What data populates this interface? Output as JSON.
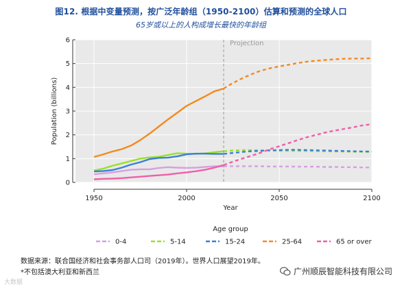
{
  "header": {
    "title": "图12. 根据中变量预测，按广泛年龄组（1950-2100）估算和预测的全球人口",
    "subtitle": "65岁或以上的人构成增长最快的年龄组"
  },
  "footer": {
    "source": "数据来源：联合国经济和社会事务部人口司（2019年）。世界人口展望2019年。",
    "footnote": "*不包括澳大利亚和新西兰",
    "watermark": "大数据",
    "company": "广州顺辰智能科技有限公司"
  },
  "chart_data": {
    "type": "line",
    "xlabel": "Year",
    "ylabel": "Population (billions)",
    "xlim": [
      1940,
      2100
    ],
    "ylim": [
      0,
      6
    ],
    "x_ticks": [
      1950,
      2000,
      2050,
      2100
    ],
    "y_ticks": [
      0,
      1,
      2,
      3,
      4,
      5,
      6
    ],
    "grid": true,
    "projection_start": 2020,
    "projection_label": "Projection",
    "legend_title": "Age group",
    "legend_position": "bottom",
    "x": [
      1950,
      1955,
      1960,
      1965,
      1970,
      1975,
      1980,
      1985,
      1990,
      1995,
      2000,
      2005,
      2010,
      2015,
      2020,
      2025,
      2030,
      2035,
      2040,
      2045,
      2050,
      2055,
      2060,
      2065,
      2070,
      2075,
      2080,
      2085,
      2090,
      2095,
      2100
    ],
    "series": [
      {
        "name": "0-4",
        "color": "#d6a0e0",
        "values": [
          0.34,
          0.38,
          0.42,
          0.48,
          0.53,
          0.55,
          0.55,
          0.61,
          0.64,
          0.62,
          0.61,
          0.62,
          0.65,
          0.68,
          0.68,
          0.68,
          0.68,
          0.68,
          0.68,
          0.67,
          0.67,
          0.67,
          0.66,
          0.66,
          0.66,
          0.65,
          0.65,
          0.64,
          0.64,
          0.63,
          0.63
        ]
      },
      {
        "name": "5-14",
        "color": "#99e02a",
        "values": [
          0.5,
          0.58,
          0.7,
          0.8,
          0.9,
          1.0,
          1.05,
          1.08,
          1.15,
          1.23,
          1.21,
          1.2,
          1.22,
          1.27,
          1.31,
          1.34,
          1.36,
          1.36,
          1.35,
          1.34,
          1.33,
          1.33,
          1.32,
          1.32,
          1.31,
          1.31,
          1.3,
          1.3,
          1.29,
          1.29,
          1.28
        ]
      },
      {
        "name": "15-24",
        "color": "#3a7fd5",
        "values": [
          0.46,
          0.48,
          0.52,
          0.62,
          0.75,
          0.85,
          0.98,
          1.03,
          1.04,
          1.1,
          1.18,
          1.21,
          1.21,
          1.2,
          1.2,
          1.24,
          1.28,
          1.31,
          1.33,
          1.35,
          1.36,
          1.37,
          1.37,
          1.36,
          1.35,
          1.34,
          1.33,
          1.32,
          1.31,
          1.3,
          1.3
        ]
      },
      {
        "name": "25-64",
        "color": "#f28a1e",
        "values": [
          1.07,
          1.18,
          1.3,
          1.4,
          1.55,
          1.78,
          2.05,
          2.35,
          2.65,
          2.93,
          3.22,
          3.42,
          3.62,
          3.83,
          3.95,
          4.18,
          4.38,
          4.55,
          4.7,
          4.8,
          4.88,
          4.95,
          5.02,
          5.08,
          5.12,
          5.15,
          5.18,
          5.2,
          5.21,
          5.21,
          5.22
        ]
      },
      {
        "name": "65 or over",
        "color": "#ee5fa8",
        "values": [
          0.13,
          0.15,
          0.16,
          0.18,
          0.21,
          0.24,
          0.27,
          0.3,
          0.33,
          0.38,
          0.42,
          0.47,
          0.53,
          0.62,
          0.73,
          0.87,
          1.0,
          1.12,
          1.25,
          1.4,
          1.52,
          1.65,
          1.78,
          1.9,
          2.0,
          2.1,
          2.18,
          2.25,
          2.32,
          2.4,
          2.45
        ]
      }
    ]
  }
}
